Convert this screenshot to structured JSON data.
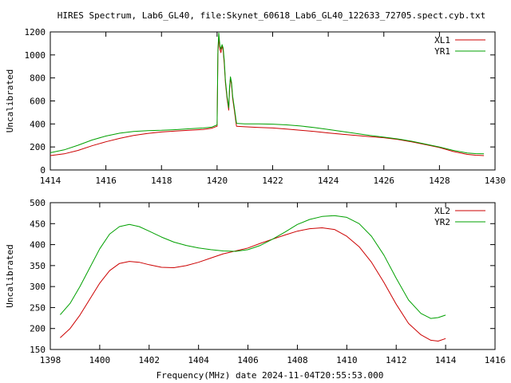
{
  "page_title": "HIRES Spectrum, Lab6_GL40, file:Skynet_60618_Lab6_GL40_122633_72705.spect.cyb.txt",
  "x_label": "Frequency(MHz) date 2024-11-04T20:55:53.000",
  "colors": {
    "red": "#cc0000",
    "green": "#00a000"
  },
  "chart_data": [
    {
      "type": "line",
      "title": "HIRES Spectrum, Lab6_GL40, file:Skynet_60618_Lab6_GL40_122633_72705.spect.cyb.txt",
      "ylabel": "Uncalibrated",
      "xlabel": "",
      "xlim": [
        1414,
        1430
      ],
      "ylim": [
        0,
        1200
      ],
      "xticks": [
        "1414",
        "1416",
        "1418",
        "1420",
        "1422",
        "1424",
        "1426",
        "1428",
        "1430"
      ],
      "yticks": [
        "0",
        "200",
        "400",
        "600",
        "800",
        "1000",
        "1200"
      ],
      "grid": false,
      "legend_position": "top-right",
      "series": [
        {
          "name": "XL1",
          "color": "#cc0000",
          "x": [
            1414.0,
            1414.5,
            1415.0,
            1415.5,
            1416.0,
            1416.5,
            1417.0,
            1417.5,
            1418.0,
            1418.5,
            1419.0,
            1419.5,
            1419.8,
            1420.0,
            1420.03,
            1420.06,
            1420.1,
            1420.14,
            1420.18,
            1420.22,
            1420.26,
            1420.3,
            1420.36,
            1420.42,
            1420.45,
            1420.48,
            1420.52,
            1420.56,
            1420.62,
            1420.7,
            1421.0,
            1421.5,
            1422.0,
            1422.5,
            1423.0,
            1423.5,
            1424.0,
            1424.5,
            1425.0,
            1425.5,
            1426.0,
            1426.5,
            1427.0,
            1427.5,
            1428.0,
            1428.5,
            1429.0,
            1429.3,
            1429.6
          ],
          "y": [
            125,
            140,
            170,
            210,
            245,
            275,
            300,
            318,
            330,
            338,
            345,
            352,
            362,
            380,
            1010,
            1150,
            1050,
            1020,
            1080,
            1040,
            920,
            760,
            620,
            520,
            700,
            800,
            740,
            620,
            520,
            380,
            375,
            370,
            365,
            355,
            345,
            335,
            322,
            310,
            300,
            290,
            280,
            265,
            245,
            220,
            195,
            160,
            135,
            128,
            125
          ]
        },
        {
          "name": "YR1",
          "color": "#00a000",
          "x": [
            1414.0,
            1414.5,
            1415.0,
            1415.5,
            1416.0,
            1416.5,
            1417.0,
            1417.5,
            1418.0,
            1418.5,
            1419.0,
            1419.5,
            1419.8,
            1420.0,
            1420.03,
            1420.06,
            1420.1,
            1420.14,
            1420.18,
            1420.22,
            1420.26,
            1420.3,
            1420.36,
            1420.42,
            1420.45,
            1420.48,
            1420.52,
            1420.56,
            1420.62,
            1420.7,
            1421.0,
            1421.5,
            1422.0,
            1422.5,
            1423.0,
            1423.5,
            1424.0,
            1424.5,
            1425.0,
            1425.5,
            1426.0,
            1426.5,
            1427.0,
            1427.5,
            1428.0,
            1428.5,
            1429.0,
            1429.3,
            1429.6
          ],
          "y": [
            150,
            175,
            215,
            260,
            295,
            320,
            335,
            342,
            345,
            350,
            358,
            365,
            372,
            392,
            1040,
            1190,
            1080,
            1050,
            1090,
            1060,
            950,
            780,
            640,
            540,
            720,
            810,
            760,
            640,
            540,
            405,
            400,
            400,
            398,
            392,
            382,
            368,
            352,
            335,
            318,
            300,
            285,
            270,
            250,
            225,
            200,
            170,
            148,
            142,
            140
          ]
        }
      ]
    },
    {
      "type": "line",
      "title": "",
      "ylabel": "Uncalibrated",
      "xlabel": "Frequency(MHz) date 2024-11-04T20:55:53.000",
      "xlim": [
        1398,
        1416
      ],
      "ylim": [
        150,
        500
      ],
      "xticks": [
        "1398",
        "1400",
        "1402",
        "1404",
        "1406",
        "1408",
        "1410",
        "1412",
        "1414",
        "1416"
      ],
      "yticks": [
        "150",
        "200",
        "250",
        "300",
        "350",
        "400",
        "450",
        "500"
      ],
      "grid": false,
      "legend_position": "top-right",
      "series": [
        {
          "name": "XL2",
          "color": "#cc0000",
          "x": [
            1398.4,
            1398.8,
            1399.2,
            1399.6,
            1400.0,
            1400.4,
            1400.8,
            1401.2,
            1401.6,
            1402.0,
            1402.5,
            1403.0,
            1403.5,
            1404.0,
            1404.5,
            1405.0,
            1405.5,
            1406.0,
            1406.5,
            1407.0,
            1407.5,
            1408.0,
            1408.5,
            1409.0,
            1409.5,
            1410.0,
            1410.5,
            1411.0,
            1411.5,
            1412.0,
            1412.5,
            1413.0,
            1413.4,
            1413.7,
            1414.0
          ],
          "y": [
            178,
            200,
            232,
            270,
            308,
            338,
            355,
            360,
            358,
            352,
            346,
            345,
            350,
            358,
            368,
            378,
            385,
            392,
            403,
            413,
            423,
            432,
            438,
            440,
            436,
            420,
            395,
            358,
            310,
            258,
            212,
            185,
            172,
            170,
            176
          ]
        },
        {
          "name": "YR2",
          "color": "#00a000",
          "x": [
            1398.4,
            1398.8,
            1399.2,
            1399.6,
            1400.0,
            1400.4,
            1400.8,
            1401.2,
            1401.6,
            1402.0,
            1402.5,
            1403.0,
            1403.5,
            1404.0,
            1404.5,
            1405.0,
            1405.5,
            1406.0,
            1406.5,
            1407.0,
            1407.5,
            1408.0,
            1408.5,
            1409.0,
            1409.5,
            1410.0,
            1410.5,
            1411.0,
            1411.5,
            1412.0,
            1412.5,
            1413.0,
            1413.4,
            1413.7,
            1414.0
          ],
          "y": [
            233,
            260,
            300,
            345,
            390,
            425,
            443,
            448,
            443,
            432,
            418,
            406,
            398,
            392,
            388,
            385,
            384,
            388,
            398,
            413,
            430,
            448,
            460,
            467,
            469,
            465,
            450,
            420,
            375,
            320,
            268,
            236,
            224,
            226,
            232
          ]
        }
      ]
    }
  ]
}
